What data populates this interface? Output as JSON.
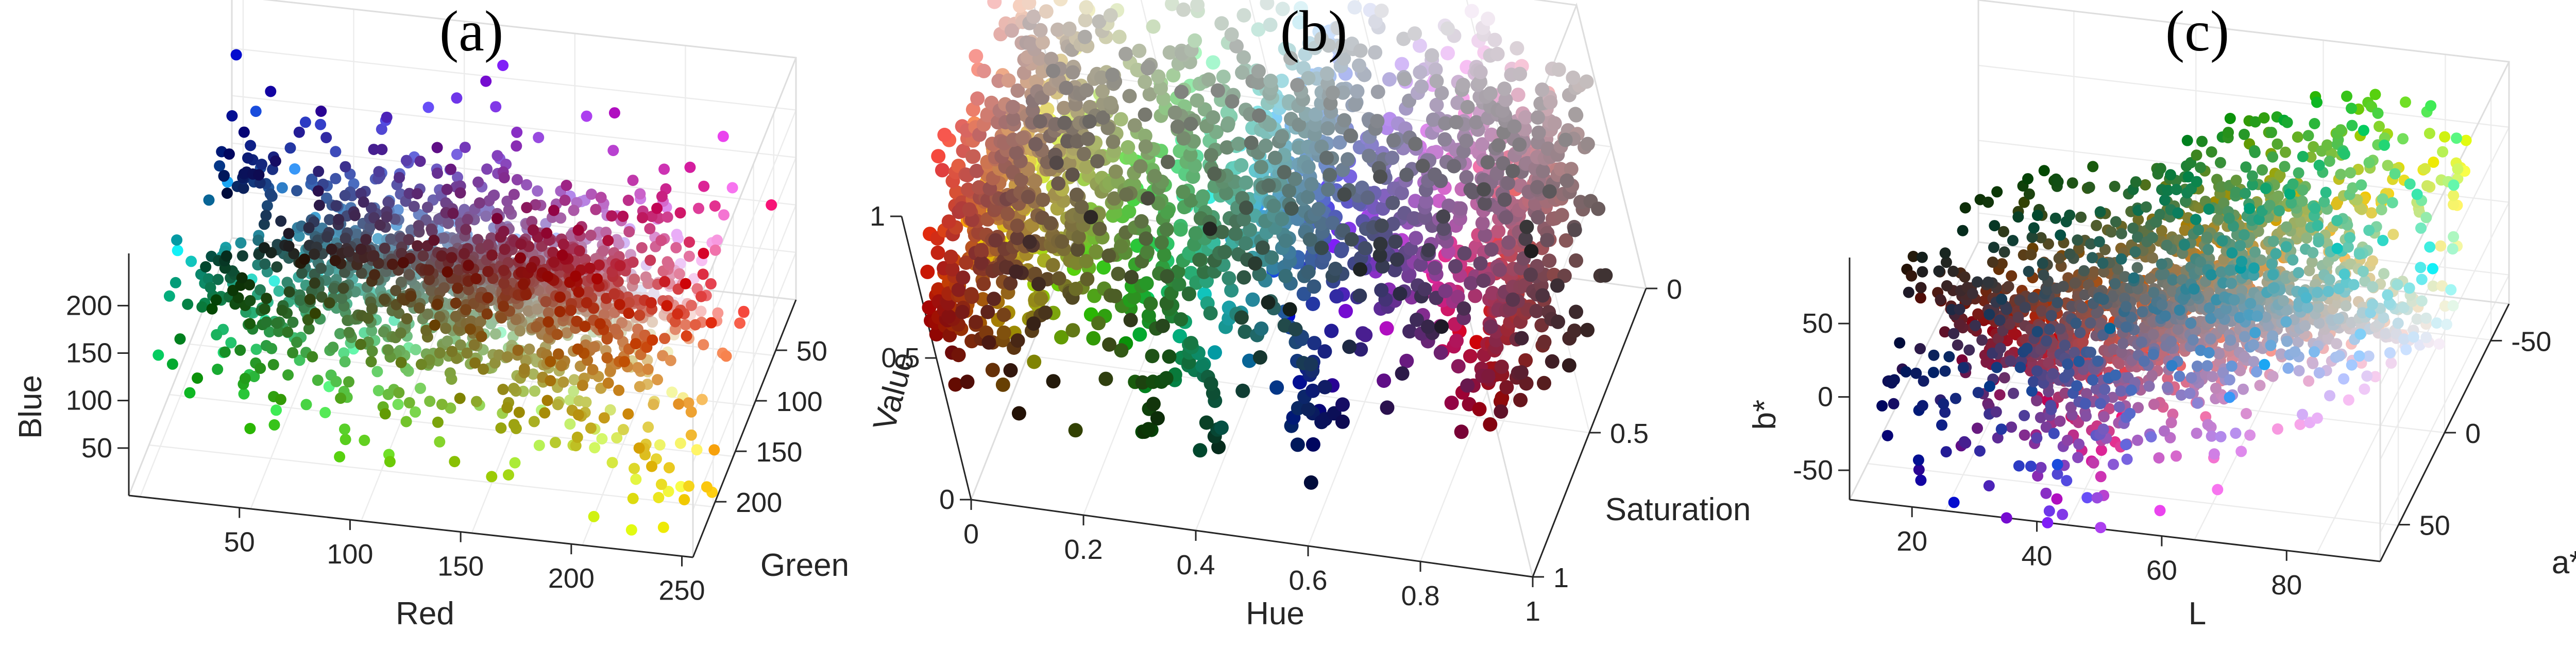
{
  "chart_data": [
    {
      "panel": "(a)",
      "type": "scatter",
      "projection": "3d",
      "title": "(a)",
      "xlabel": "Red",
      "ylabel": "Green",
      "zlabel": "Blue",
      "xlim": [
        0,
        255
      ],
      "ylim": [
        0,
        255
      ],
      "zlim": [
        0,
        255
      ],
      "xticks": [
        250,
        200,
        150,
        100,
        50
      ],
      "yticks": [
        50,
        100,
        150,
        200
      ],
      "zticks": [
        50,
        100,
        150,
        200
      ],
      "xtick_labels": [
        "250",
        "200",
        "150",
        "100",
        "50"
      ],
      "ytick_labels": [
        "50",
        "100",
        "150",
        "200"
      ],
      "ztick_labels": [
        "50",
        "100",
        "150",
        "200"
      ],
      "grid": true,
      "color_mapping": "each point is filled with its own RGB color",
      "description_of_points": "about 2,000 color samples whose coordinates are their own RGB components",
      "series": [
        {
          "x": [
            40,
            80,
            120,
            160,
            200,
            230,
            70,
            130,
            190,
            55,
            105,
            150,
            215,
            90,
            170,
            35,
            245,
            110,
            180,
            60,
            140,
            200,
            225,
            25,
            95,
            155,
            75,
            125,
            185,
            45
          ],
          "y": [
            70,
            105,
            140,
            120,
            150,
            155,
            110,
            160,
            130,
            55,
            90,
            175,
            145,
            95,
            185,
            40,
            165,
            80,
            115,
            130,
            200,
            180,
            110,
            35,
            145,
            95,
            170,
            115,
            205,
            105
          ],
          "z": [
            120,
            145,
            170,
            175,
            185,
            150,
            95,
            125,
            90,
            155,
            200,
            170,
            205,
            75,
            150,
            135,
            190,
            215,
            205,
            60,
            105,
            75,
            150,
            155,
            160,
            225,
            125,
            85,
            110,
            190
          ]
        }
      ]
    },
    {
      "panel": "(b)",
      "type": "scatter",
      "projection": "3d",
      "title": "(b)",
      "xlabel": "Hue",
      "ylabel": "Saturation",
      "zlabel": "Value",
      "xlim": [
        0,
        1
      ],
      "ylim": [
        0,
        1
      ],
      "zlim": [
        0,
        1
      ],
      "xticks": [
        1,
        0.8,
        0.6,
        0.4,
        0.2,
        0
      ],
      "yticks": [
        0,
        0.5,
        1
      ],
      "zticks": [
        0,
        0.5,
        1
      ],
      "xtick_labels": [
        "1",
        "0.8",
        "0.6",
        "0.4",
        "0.2",
        "0"
      ],
      "ytick_labels": [
        "0",
        "0.5",
        "1"
      ],
      "ztick_labels": [
        "0",
        "0.5",
        "1"
      ],
      "grid": true,
      "color_mapping": "each point is filled with its own color",
      "description_of_points": "the same color samples plotted at their HSV coordinates",
      "series": [
        {
          "x": [
            0.02,
            0.05,
            0.08,
            0.12,
            0.15,
            0.18,
            0.25,
            0.3,
            0.35,
            0.4,
            0.45,
            0.5,
            0.55,
            0.6,
            0.65,
            0.7,
            0.75,
            0.8,
            0.85,
            0.9,
            0.95,
            0.98,
            0.1,
            0.38,
            0.62,
            0.92,
            0.03,
            0.22,
            0.48,
            0.7
          ],
          "y": [
            0.15,
            0.45,
            0.6,
            0.3,
            0.75,
            0.2,
            0.5,
            0.35,
            0.65,
            0.25,
            0.55,
            0.4,
            0.3,
            0.7,
            0.45,
            0.5,
            0.35,
            0.4,
            0.6,
            0.55,
            0.45,
            0.85,
            0.9,
            0.8,
            0.95,
            0.8,
            0.7,
            0.85,
            0.75,
            0.1
          ],
          "z": [
            0.85,
            0.8,
            0.85,
            0.8,
            0.85,
            0.7,
            0.7,
            0.75,
            0.65,
            0.8,
            0.75,
            0.8,
            0.7,
            0.8,
            0.7,
            0.75,
            0.8,
            0.8,
            0.75,
            0.8,
            0.85,
            0.5,
            0.55,
            0.55,
            0.35,
            0.45,
            0.5,
            0.55,
            0.45,
            0.9
          ]
        }
      ]
    },
    {
      "panel": "(c)",
      "type": "scatter",
      "projection": "3d",
      "title": "(c)",
      "xlabel": "L",
      "ylabel": "a*",
      "zlabel": "b*",
      "xlim": [
        10,
        95
      ],
      "ylim": [
        -70,
        70
      ],
      "zlim": [
        -70,
        95
      ],
      "xticks": [
        80,
        60,
        40,
        20
      ],
      "yticks": [
        -50,
        0,
        50
      ],
      "zticks": [
        -50,
        0,
        50
      ],
      "xtick_labels": [
        "80",
        "60",
        "40",
        "20"
      ],
      "ytick_labels": [
        "-50",
        "0",
        "50"
      ],
      "ztick_labels": [
        "-50",
        "0",
        "50"
      ],
      "grid": true,
      "color_mapping": "each point is filled with its own color",
      "description_of_points": "the same color samples plotted at their CIELAB coordinates",
      "series": [
        {
          "x": [
            85,
            80,
            75,
            70,
            65,
            60,
            55,
            50,
            45,
            40,
            35,
            30,
            25,
            20,
            72,
            62,
            52,
            42,
            32,
            88,
            68,
            58,
            48,
            38,
            28,
            78,
            66,
            54,
            44,
            36
          ],
          "y": [
            -5,
            10,
            0,
            -10,
            15,
            5,
            -20,
            20,
            30,
            -5,
            10,
            -15,
            5,
            0,
            40,
            -30,
            25,
            45,
            -25,
            -20,
            35,
            -40,
            50,
            15,
            -10,
            -25,
            20,
            35,
            -35,
            40
          ],
          "z": [
            60,
            45,
            30,
            55,
            35,
            50,
            25,
            40,
            20,
            30,
            10,
            20,
            5,
            0,
            -10,
            65,
            -20,
            10,
            55,
            40,
            -25,
            70,
            -15,
            25,
            35,
            10,
            -30,
            -40,
            45,
            -10
          ]
        }
      ]
    }
  ]
}
